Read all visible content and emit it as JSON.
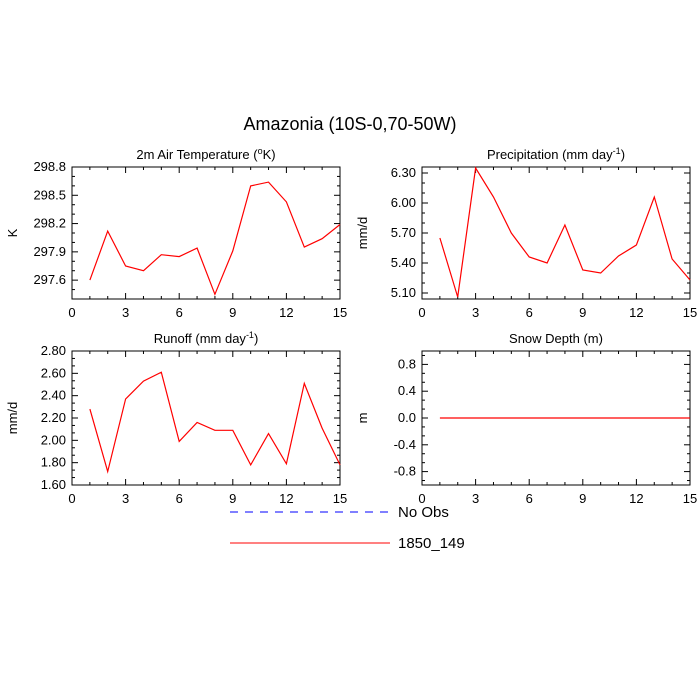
{
  "figure": {
    "title": "Amazonia (10S-0,70-50W)",
    "colors": {
      "model": "#ff0000",
      "obs": "#0000ff",
      "axis": "#000000"
    }
  },
  "legend": {
    "entries": [
      {
        "label": "No Obs",
        "color": "#0000ff",
        "style": "dashed"
      },
      {
        "label": "1850_149",
        "color": "#ff0000",
        "style": "solid"
      }
    ]
  },
  "chart_data": [
    {
      "type": "line",
      "title_text": "2m Air Temperature (",
      "title_sup": "o",
      "title_tail": "K)",
      "ylabel": "K",
      "xlim": [
        0,
        15
      ],
      "ylim": [
        297.4,
        298.8
      ],
      "xticks": [
        0,
        3,
        6,
        9,
        12,
        15
      ],
      "yticks": [
        297.6,
        297.9,
        298.2,
        298.5,
        298.8
      ],
      "ytick_labels": [
        "297.6",
        "297.9",
        "298.2",
        "298.5",
        "298.8"
      ],
      "series": [
        {
          "name": "1850_149",
          "x": [
            1,
            2,
            3,
            4,
            5,
            6,
            7,
            8,
            9,
            10,
            11,
            12,
            13,
            14,
            15
          ],
          "y": [
            297.6,
            298.12,
            297.75,
            297.7,
            297.87,
            297.85,
            297.94,
            297.45,
            297.91,
            298.6,
            298.64,
            298.43,
            297.95,
            298.04,
            298.19
          ]
        }
      ]
    },
    {
      "type": "line",
      "title_text": "Precipitation (mm day",
      "title_sup": "-1",
      "title_tail": ")",
      "ylabel": "mm/d",
      "xlim": [
        0,
        15
      ],
      "ylim": [
        5.04,
        6.36
      ],
      "xticks": [
        0,
        3,
        6,
        9,
        12,
        15
      ],
      "yticks": [
        5.1,
        5.4,
        5.7,
        6.0,
        6.3
      ],
      "ytick_labels": [
        "5.10",
        "5.40",
        "5.70",
        "6.00",
        "6.30"
      ],
      "series": [
        {
          "name": "1850_149",
          "x": [
            1,
            2,
            3,
            4,
            5,
            6,
            7,
            8,
            9,
            10,
            11,
            12,
            13,
            14,
            15
          ],
          "y": [
            5.65,
            5.06,
            6.35,
            6.06,
            5.7,
            5.46,
            5.4,
            5.78,
            5.33,
            5.3,
            5.47,
            5.58,
            6.06,
            5.44,
            5.23
          ]
        }
      ]
    },
    {
      "type": "line",
      "title_text": "Runoff (mm day",
      "title_sup": "-1",
      "title_tail": ")",
      "ylabel": "mm/d",
      "xlim": [
        0,
        15
      ],
      "ylim": [
        1.6,
        2.8
      ],
      "xticks": [
        0,
        3,
        6,
        9,
        12,
        15
      ],
      "yticks": [
        1.6,
        1.8,
        2.0,
        2.2,
        2.4,
        2.6,
        2.8
      ],
      "ytick_labels": [
        "1.60",
        "1.80",
        "2.00",
        "2.20",
        "2.40",
        "2.60",
        "2.80"
      ],
      "series": [
        {
          "name": "1850_149",
          "x": [
            1,
            2,
            3,
            4,
            5,
            6,
            7,
            8,
            9,
            10,
            11,
            12,
            13,
            14,
            15
          ],
          "y": [
            2.28,
            1.72,
            2.37,
            2.53,
            2.61,
            1.99,
            2.16,
            2.09,
            2.09,
            1.78,
            2.06,
            1.79,
            2.51,
            2.11,
            1.78
          ]
        }
      ]
    },
    {
      "type": "line",
      "title_text": "Snow Depth (m)",
      "title_sup": "",
      "title_tail": "",
      "ylabel": "m",
      "xlim": [
        0,
        15
      ],
      "ylim": [
        -1.0,
        1.0
      ],
      "xticks": [
        0,
        3,
        6,
        9,
        12,
        15
      ],
      "yticks": [
        -0.8,
        -0.4,
        0.0,
        0.4,
        0.8
      ],
      "ytick_labels": [
        "-0.8",
        "-0.4",
        "0.0",
        "0.4",
        "0.8"
      ],
      "series": [
        {
          "name": "1850_149",
          "x": [
            1,
            2,
            3,
            4,
            5,
            6,
            7,
            8,
            9,
            10,
            11,
            12,
            13,
            14,
            15
          ],
          "y": [
            0,
            0,
            0,
            0,
            0,
            0,
            0,
            0,
            0,
            0,
            0,
            0,
            0,
            0,
            0
          ]
        }
      ]
    }
  ]
}
